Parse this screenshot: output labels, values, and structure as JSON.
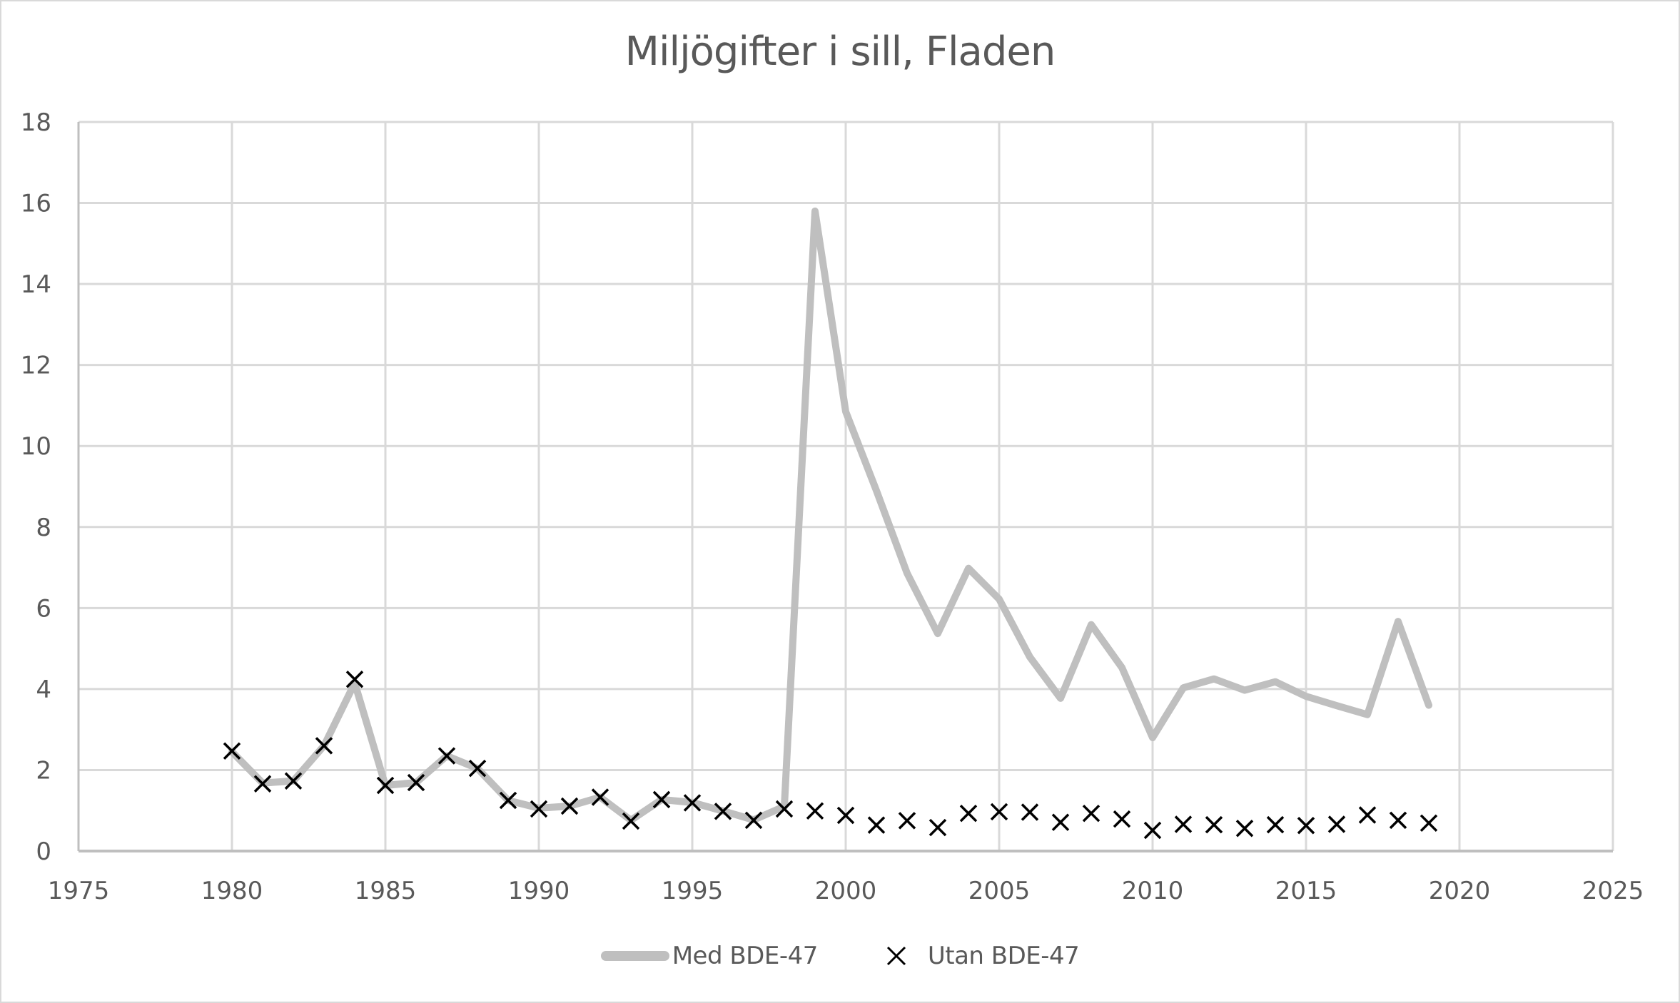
{
  "chart_data": {
    "type": "line",
    "title": "Miljögifter i sill, Fladen",
    "xlabel": "",
    "ylabel": "",
    "xlim": [
      1975,
      2025
    ],
    "ylim": [
      0,
      18
    ],
    "x_ticks": [
      1975,
      1980,
      1985,
      1990,
      1995,
      2000,
      2005,
      2010,
      2015,
      2020,
      2025
    ],
    "y_ticks": [
      0,
      2,
      4,
      6,
      8,
      10,
      12,
      14,
      16,
      18
    ],
    "grid": true,
    "legend_position": "bottom",
    "x": [
      1980,
      1981,
      1982,
      1983,
      1984,
      1985,
      1986,
      1987,
      1988,
      1989,
      1990,
      1991,
      1992,
      1993,
      1994,
      1995,
      1996,
      1997,
      1998,
      1999,
      2000,
      2001,
      2002,
      2003,
      2004,
      2005,
      2006,
      2007,
      2008,
      2009,
      2010,
      2011,
      2012,
      2013,
      2014,
      2015,
      2016,
      2017,
      2018,
      2019
    ],
    "series": [
      {
        "name": "Med BDE-47",
        "style": "line",
        "color": "#bfbfbf",
        "values": [
          2.45,
          1.68,
          1.73,
          2.6,
          4.15,
          1.62,
          1.69,
          2.35,
          2.04,
          1.25,
          1.06,
          1.11,
          1.33,
          0.76,
          1.27,
          1.2,
          0.99,
          0.77,
          1.1,
          15.8,
          10.85,
          8.9,
          6.86,
          5.37,
          6.98,
          6.22,
          4.79,
          3.77,
          5.59,
          4.53,
          2.8,
          4.03,
          4.25,
          3.97,
          4.18,
          3.82,
          3.59,
          3.37,
          5.67,
          3.6
        ]
      },
      {
        "name": "Utan BDE-47",
        "style": "marker-x",
        "color": "#000000",
        "values": [
          2.47,
          1.66,
          1.73,
          2.6,
          4.24,
          1.62,
          1.69,
          2.35,
          2.04,
          1.25,
          1.04,
          1.11,
          1.33,
          0.74,
          1.27,
          1.19,
          0.98,
          0.76,
          1.04,
          0.99,
          0.88,
          0.64,
          0.75,
          0.58,
          0.93,
          0.97,
          0.96,
          0.71,
          0.93,
          0.79,
          0.51,
          0.66,
          0.65,
          0.56,
          0.65,
          0.63,
          0.66,
          0.89,
          0.76,
          0.69
        ]
      }
    ]
  },
  "legend": {
    "items": [
      {
        "label": "Med BDE-47"
      },
      {
        "label": "Utan BDE-47"
      }
    ]
  },
  "colors": {
    "grid": "#d9d9d9",
    "axis": "#bfbfbf",
    "text": "#595959",
    "med_line": "#bfbfbf",
    "utan_marker": "#000000"
  }
}
